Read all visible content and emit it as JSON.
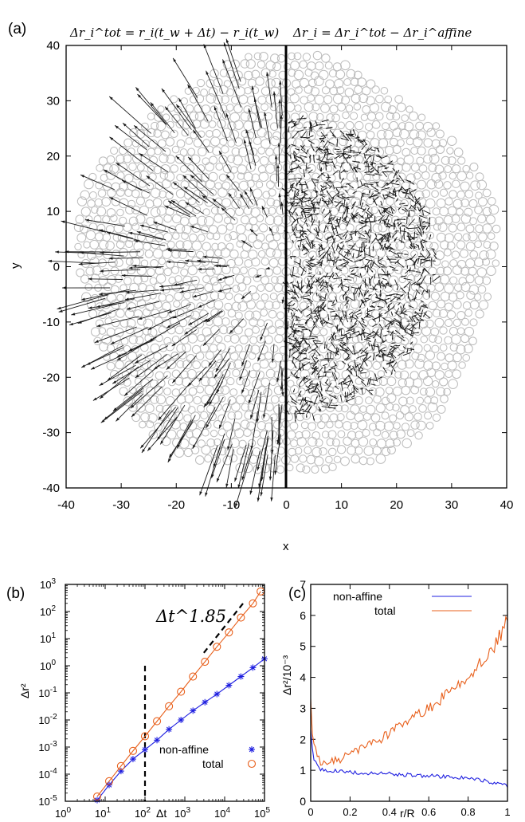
{
  "panel_a": {
    "label": "(a)",
    "title_left": "Δr_i^tot = r_i(t_w + Δt) − r_i(t_w)",
    "title_right": "Δr_i = Δr_i^tot − Δr_i^affine",
    "xlabel": "x",
    "ylabel": "y"
  },
  "panel_b": {
    "label": "(b)",
    "xlabel": "Δt",
    "ylabel": "Δr²",
    "annotation": "Δt^1.85"
  },
  "panel_c": {
    "label": "(c)",
    "xlabel": "r/R",
    "ylabel": "Δr²/10⁻³"
  },
  "colors": {
    "non_affine": "#1f1fe0",
    "total": "#e8601c",
    "particles": "#bbbbbb",
    "arrows": "#1a1a1a"
  },
  "chart_data": [
    {
      "type": "scatter",
      "name": "particle displacement map",
      "xlim": [
        -40,
        40
      ],
      "ylim": [
        -40,
        40
      ],
      "xticks": [
        -40,
        -30,
        -20,
        -10,
        0,
        10,
        20,
        30,
        40
      ],
      "yticks": [
        -40,
        -30,
        -20,
        -10,
        0,
        10,
        20,
        30,
        40
      ],
      "packing_radius": 38,
      "left_half": {
        "quantity": "total displacement",
        "arrows": "radial outward, growing with r",
        "max_arrow_length": 9
      },
      "right_half": {
        "quantity": "non-affine displacement",
        "arrows": "short random",
        "region_radius": 27
      }
    },
    {
      "type": "line",
      "xscale": "log",
      "yscale": "log",
      "xlim": [
        1,
        100000
      ],
      "ylim": [
        1e-05,
        1000
      ],
      "xticks": [
        "10^0",
        "10^1",
        "10^2",
        "10^3",
        "10^4",
        "10^5"
      ],
      "yticks": [
        "10^-5",
        "10^-4",
        "10^-3",
        "10^-2",
        "10^-1",
        "10^0",
        "10^1",
        "10^2",
        "10^3"
      ],
      "legend": "bottom-right",
      "series": [
        {
          "name": "non-affine",
          "marker": "asterisk",
          "x": [
            6.3,
            12.6,
            25,
            50,
            100,
            200,
            400,
            800,
            1600,
            3200,
            6400,
            12800,
            25600,
            51200,
            100000
          ],
          "y": [
            1.1e-05,
            4e-05,
            0.00013,
            0.00036,
            0.0008,
            0.0018,
            0.0045,
            0.01,
            0.022,
            0.045,
            0.09,
            0.19,
            0.4,
            0.85,
            1.8
          ]
        },
        {
          "name": "total",
          "marker": "circle",
          "x": [
            6.3,
            12.6,
            25,
            50,
            100,
            200,
            400,
            800,
            1600,
            3200,
            6400,
            12800,
            25600,
            51200,
            80000
          ],
          "y": [
            1.5e-05,
            5.5e-05,
            0.0002,
            0.00072,
            0.0025,
            0.009,
            0.032,
            0.11,
            0.4,
            1.4,
            5,
            17,
            60,
            200,
            550
          ]
        }
      ],
      "reference_slope": 1.85,
      "vertical_marker_x": 100
    },
    {
      "type": "line",
      "xlim": [
        0,
        1
      ],
      "ylim": [
        0,
        7
      ],
      "xticks": [
        0,
        0.2,
        0.4,
        0.6,
        0.8,
        1
      ],
      "yticks": [
        0,
        1,
        2,
        3,
        4,
        5,
        6,
        7
      ],
      "legend": "top-left",
      "series": [
        {
          "name": "non-affine",
          "x": [
            0,
            0.01,
            0.03,
            0.05,
            0.1,
            0.15,
            0.2,
            0.3,
            0.4,
            0.5,
            0.6,
            0.7,
            0.8,
            0.9,
            0.95,
            1.0
          ],
          "y": [
            2.4,
            1.5,
            1.15,
            1.05,
            1.0,
            0.95,
            0.95,
            0.9,
            0.88,
            0.85,
            0.82,
            0.78,
            0.75,
            0.65,
            0.55,
            0.5
          ]
        },
        {
          "name": "total",
          "x": [
            0,
            0.01,
            0.03,
            0.05,
            0.1,
            0.15,
            0.2,
            0.3,
            0.4,
            0.5,
            0.6,
            0.7,
            0.8,
            0.9,
            0.95,
            1.0
          ],
          "y": [
            3.5,
            2.0,
            1.5,
            1.3,
            1.25,
            1.35,
            1.5,
            1.8,
            2.2,
            2.6,
            3.0,
            3.5,
            4.0,
            4.7,
            5.2,
            5.8
          ]
        }
      ]
    }
  ]
}
